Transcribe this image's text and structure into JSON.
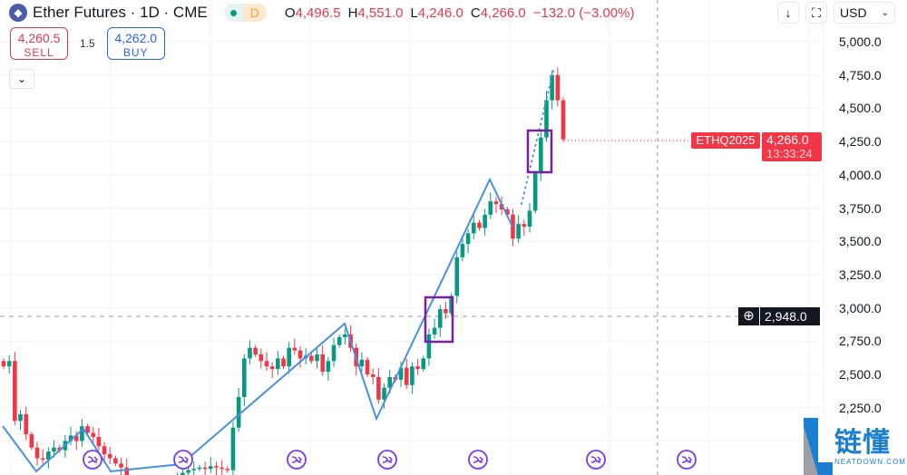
{
  "header": {
    "symbol_icon": "ethereum-icon",
    "title": "Ether Futures · 1D · CME",
    "status_dot_color": "#089981",
    "interval_badge": "D",
    "ohlc": [
      {
        "k": "O",
        "v": "4,496.5"
      },
      {
        "k": "H",
        "v": "4,551.0"
      },
      {
        "k": "L",
        "v": "4,246.0"
      },
      {
        "k": "C",
        "v": "4,266.0"
      }
    ],
    "change": "−132.0 (−3.00%)"
  },
  "trade": {
    "sell_price": "4,260.5",
    "sell_label": "SELL",
    "spread": "1.5",
    "buy_price": "4,262.0",
    "buy_label": "BUY"
  },
  "toolbar": {
    "collapse_icon": "chevron-down-icon",
    "download_icon": "arrow-down-icon",
    "fullscreen_icon": "fullscreen-icon",
    "currency": "USD"
  },
  "price_axis": {
    "labels": [
      "5,000.0",
      "4,750.0",
      "4,500.0",
      "4,250.0",
      "4,000.0",
      "3,750.0",
      "3,500.0",
      "3,250.0",
      "3,000.0",
      "2,750.0",
      "2,500.0",
      "2,250.0"
    ],
    "current_symbol": "ETHQ2025",
    "current_price": "4,266.0",
    "countdown": "13:33:24",
    "crosshair_price": "2,948.0"
  },
  "colors": {
    "up": "#089981",
    "down": "#f23645",
    "zigzag": "#4a90e2",
    "box": "#7b1fa2",
    "event": "#7c3aed"
  },
  "series": {
    "closes": [
      2560,
      2600,
      2150,
      2200,
      2050,
      1950,
      1870,
      1860,
      1920,
      1950,
      1930,
      2000,
      2040,
      2000,
      2110,
      2060,
      2030,
      1960,
      1900,
      1870,
      1830,
      1800,
      1700,
      1680,
      1650,
      1640,
      1660,
      1650,
      1670,
      1690,
      1700,
      1720,
      1760,
      1780,
      1790,
      1800,
      1790,
      1810,
      1800,
      1790,
      1780,
      2100,
      2330,
      2620,
      2700,
      2650,
      2600,
      2560,
      2540,
      2620,
      2560,
      2700,
      2680,
      2620,
      2640,
      2600,
      2650,
      2520,
      2600,
      2720,
      2780,
      2800,
      2700,
      2560,
      2610,
      2500,
      2480,
      2310,
      2400,
      2480,
      2460,
      2550,
      2420,
      2560,
      2540,
      2620,
      2800,
      2850,
      2990,
      2960,
      3090,
      3380,
      3480,
      3560,
      3640,
      3600,
      3700,
      3800,
      3780,
      3740,
      3700,
      3520,
      3630,
      3610,
      3730,
      4010,
      4280,
      4560,
      4750,
      4560,
      4266
    ]
  },
  "watermark": {
    "text_cn": "链懂",
    "text_en": "NEATDOWN.COM"
  }
}
